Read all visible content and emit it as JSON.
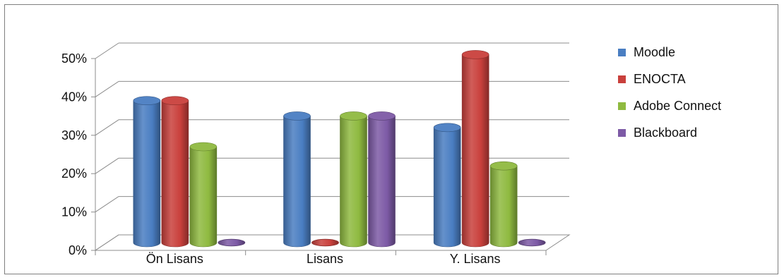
{
  "chart_data": {
    "type": "bar",
    "variant": "3d-cylinder",
    "title": "",
    "xlabel": "",
    "ylabel": "",
    "categories": [
      "Ön Lisans",
      "Lisans",
      "Y. Lisans"
    ],
    "series": [
      {
        "name": "Moodle",
        "color": "#4a7ec2",
        "values": [
          37,
          33,
          30
        ]
      },
      {
        "name": "ENOCTA",
        "color": "#c9403c",
        "values": [
          37,
          0,
          49
        ]
      },
      {
        "name": "Adobe Connect",
        "color": "#8fba40",
        "values": [
          25,
          33,
          20
        ]
      },
      {
        "name": "Blackboard",
        "color": "#7d5aa6",
        "values": [
          0,
          33,
          0
        ]
      }
    ],
    "ylim": [
      0,
      50
    ],
    "yticks": [
      0,
      10,
      20,
      30,
      40,
      50
    ],
    "ytick_labels": [
      "0%",
      "10%",
      "20%",
      "30%",
      "40%",
      "50%"
    ],
    "grid": true,
    "legend_position": "right"
  }
}
